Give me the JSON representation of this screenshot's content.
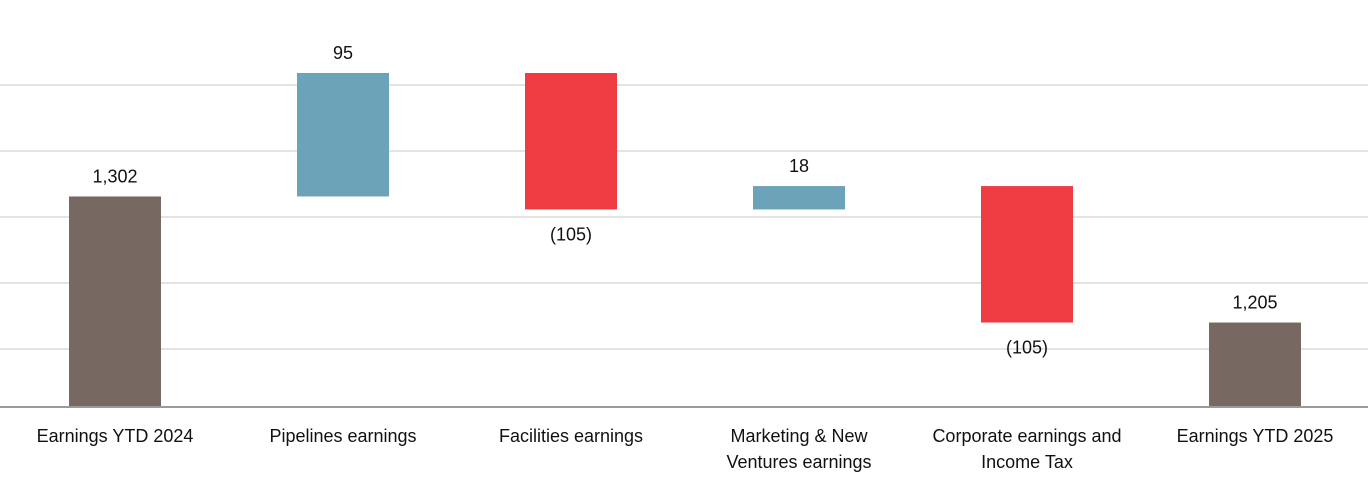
{
  "chart_data": {
    "type": "bar",
    "subtype": "waterfall",
    "title": "",
    "xlabel": "",
    "ylabel": "",
    "grid": true,
    "legend": "none",
    "ylim": [
      1140,
      1427
    ],
    "categories": [
      [
        "Earnings YTD 2024"
      ],
      [
        "Pipelines earnings"
      ],
      [
        "Facilities earnings"
      ],
      [
        "Marketing & New",
        "Ventures earnings"
      ],
      [
        "Corporate earnings and",
        "Income Tax"
      ],
      [
        "Earnings YTD 2025"
      ]
    ],
    "steps": [
      {
        "kind": "total",
        "value": 1302,
        "label": "1,302"
      },
      {
        "kind": "increase",
        "value": 95,
        "label": "95"
      },
      {
        "kind": "decrease",
        "value": -105,
        "label": "(105)"
      },
      {
        "kind": "increase",
        "value": 18,
        "label": "18"
      },
      {
        "kind": "decrease",
        "value": -105,
        "label": "(105)"
      },
      {
        "kind": "total",
        "value": 1205,
        "label": "1,205"
      }
    ],
    "colors": {
      "total": "#776961",
      "increase": "#6ca3b9",
      "decrease": "#ee3c42"
    }
  }
}
